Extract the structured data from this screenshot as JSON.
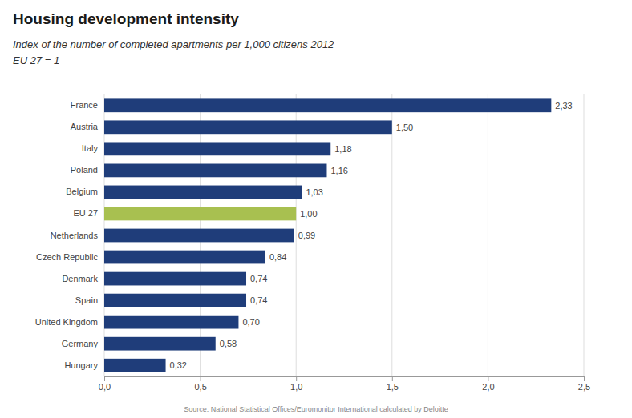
{
  "chart_data": {
    "type": "bar",
    "orientation": "horizontal",
    "title": "Housing development intensity",
    "subtitle": [
      "Index of the number of completed apartments per 1,000 citizens 2012",
      "EU 27 = 1"
    ],
    "source": "Source: National Statistical Offices/Euromonitor International calculated by Deloitte",
    "categories": [
      "France",
      "Austria",
      "Italy",
      "Poland",
      "Belgium",
      "EU 27",
      "Netherlands",
      "Czech Republic",
      "Denmark",
      "Spain",
      "United Kingdom",
      "Germany",
      "Hungary"
    ],
    "values": [
      2.33,
      1.5,
      1.18,
      1.16,
      1.03,
      1.0,
      0.99,
      0.84,
      0.74,
      0.74,
      0.7,
      0.58,
      0.32
    ],
    "value_labels": [
      "2,33",
      "1,50",
      "1,18",
      "1,16",
      "1,03",
      "1,00",
      "0,99",
      "0,84",
      "0,74",
      "0,74",
      "0,70",
      "0,58",
      "0,32"
    ],
    "colors": [
      "#1f3d7a",
      "#1f3d7a",
      "#1f3d7a",
      "#1f3d7a",
      "#1f3d7a",
      "#a8c050",
      "#1f3d7a",
      "#1f3d7a",
      "#1f3d7a",
      "#1f3d7a",
      "#1f3d7a",
      "#1f3d7a",
      "#1f3d7a"
    ],
    "data_labels": true,
    "xlim": [
      0,
      2.5
    ],
    "xticks": [
      {
        "value": 0.0,
        "label": "0,0"
      },
      {
        "value": 0.5,
        "label": "0,5"
      },
      {
        "value": 1.0,
        "label": "1,0"
      },
      {
        "value": 1.5,
        "label": "1,5"
      },
      {
        "value": 2.0,
        "label": "2,0"
      },
      {
        "value": 2.5,
        "label": "2,5"
      }
    ],
    "grid": true
  }
}
